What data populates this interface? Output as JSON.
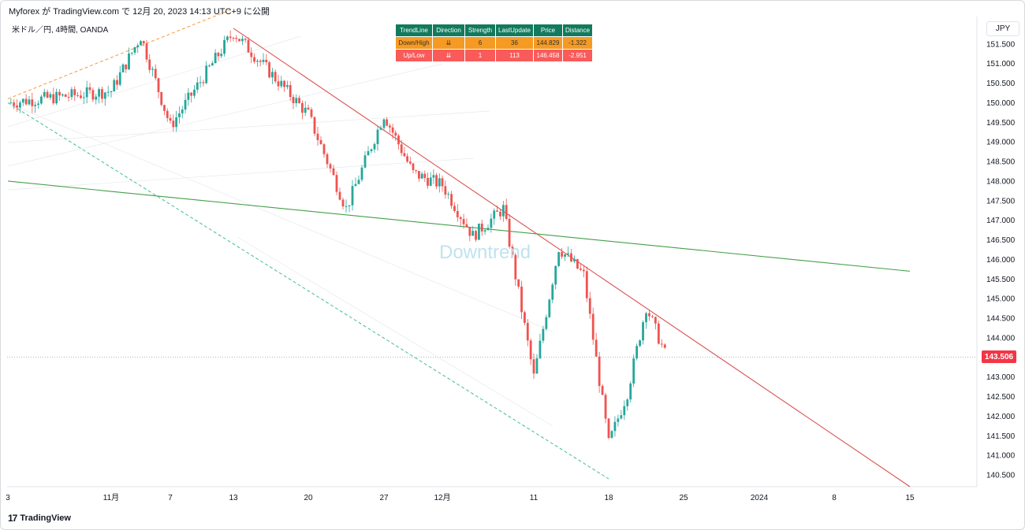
{
  "header": {
    "publish_line": "Myforex が TradingView.com で 12月 20, 2023 14:13 UTC+9 に公開",
    "symbol_line": "米ドル／円, 4時間, OANDA"
  },
  "currency": "JPY",
  "current_price": "143.506",
  "watermark": "Downtrend",
  "brand": "TradingView",
  "trend_table": {
    "columns": [
      "TrendLine",
      "Direction",
      "Strength",
      "LastUpdate",
      "Price",
      "Distance"
    ],
    "rows": [
      [
        "Down/High",
        "⇊",
        "6",
        "36",
        "144.829",
        "-1.322"
      ],
      [
        "Up/Low",
        "⇊",
        "1",
        "113",
        "146.458",
        "-2.951"
      ]
    ]
  },
  "colors": {
    "up": "#26a69a",
    "down": "#ef5350",
    "resistance": "#d9534f",
    "support_long": "#43a047",
    "upper_channel": "#f7a14a",
    "lower_channel": "#4fc3a1",
    "table_header": "#127a5d",
    "row_orange": "#f59a23",
    "row_red": "#f95a5a"
  },
  "chart_data": {
    "type": "candlestick",
    "instrument": "米ドル／円",
    "timeframe": "4時間",
    "ylim": [
      140.2,
      152.2
    ],
    "y_ticks": [
      "151.500",
      "151.000",
      "150.500",
      "150.000",
      "149.500",
      "149.000",
      "148.500",
      "148.000",
      "147.500",
      "147.000",
      "146.500",
      "146.000",
      "145.500",
      "145.000",
      "144.500",
      "144.000",
      "143.500",
      "143.000",
      "142.500",
      "142.000",
      "141.500",
      "141.000",
      "140.500"
    ],
    "x_ticks": [
      "3",
      "11月",
      "7",
      "13",
      "20",
      "27",
      "12月",
      "11",
      "18",
      "25",
      "2024",
      "8",
      "15"
    ],
    "waypoints": [
      [
        "3",
        150.0
      ],
      [
        "11月",
        150.3
      ],
      [
        "11月",
        151.7
      ],
      [
        "7",
        149.4
      ],
      [
        "13",
        151.8
      ],
      [
        "20",
        149.7
      ],
      [
        "20",
        147.3
      ],
      [
        "27",
        149.7
      ],
      [
        "27",
        148.2
      ],
      [
        "12月",
        147.9
      ],
      [
        "12月",
        146.6
      ],
      [
        "12月",
        147.3
      ],
      [
        "11",
        143.0
      ],
      [
        "11",
        146.3
      ],
      [
        "11",
        145.6
      ],
      [
        "18",
        141.3
      ],
      [
        "18",
        142.6
      ],
      [
        "18",
        144.8
      ],
      [
        "18",
        143.6
      ]
    ],
    "lines": [
      {
        "label": "Down/High",
        "from": [
          "13",
          151.9
        ],
        "to": [
          "15",
          140.2
        ]
      },
      {
        "label": "",
        "from": [
          "3",
          148.0
        ],
        "to": [
          "15",
          145.7
        ]
      },
      {
        "label": "",
        "from": [
          "3",
          150.1
        ],
        "to": [
          "13",
          152.4
        ]
      },
      {
        "label": "",
        "from": [
          "3",
          150.0
        ],
        "to": [
          "18",
          140.4
        ]
      }
    ],
    "last_price": 143.506
  }
}
